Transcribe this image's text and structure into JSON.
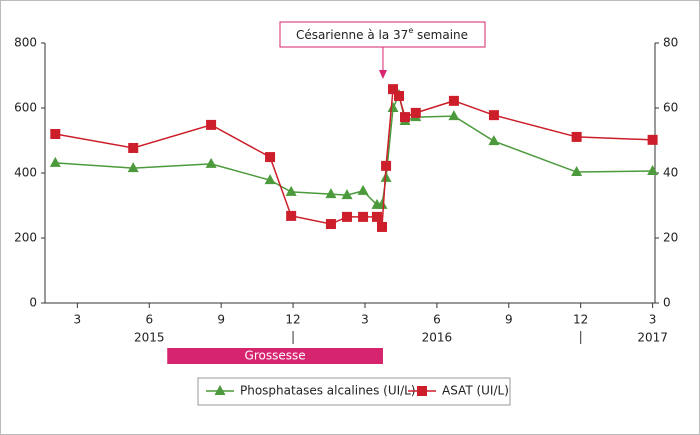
{
  "chart_data": {
    "type": "line",
    "x": [
      2.08,
      5.33,
      8.58,
      11.04,
      11.92,
      13.58,
      14.25,
      14.92,
      15.5,
      15.71,
      15.88,
      16.17,
      16.42,
      16.67,
      17.12,
      18.71,
      20.38,
      23.83,
      27.0
    ],
    "series": [
      {
        "name": "Phosphatases alcalines (UI/L)",
        "color": "#4c9a3c",
        "marker": "triangle",
        "values": [
          431,
          415,
          428,
          378,
          342,
          335,
          332,
          345,
          302,
          302,
          385,
          600,
          640,
          560,
          572,
          575,
          498,
          403,
          406
        ]
      },
      {
        "name": "ASAT (UI/L)",
        "color": "#cc1f2b",
        "marker": "square",
        "axis": "y2",
        "values": [
          52,
          47.7,
          54.8,
          44.9,
          26.8,
          24.3,
          26.5,
          26.5,
          26.5,
          23.4,
          42.2,
          65.8,
          63.7,
          57.2,
          58.5,
          62.2,
          57.8,
          51.1,
          50.2
        ]
      }
    ],
    "xlim": [
      1.65,
      27.1
    ],
    "xticks": [
      3,
      6,
      9,
      12,
      {
        "value": 15,
        "label": "3"
      },
      {
        "value": 18,
        "label": "6"
      },
      {
        "value": 21,
        "label": "9"
      },
      {
        "value": 24,
        "label": "12"
      },
      {
        "value": 27,
        "label": "3"
      }
    ],
    "ylim": [
      0,
      800
    ],
    "yticks": [
      0,
      200,
      400,
      600,
      800
    ],
    "y2lim": [
      0,
      80
    ],
    "y2ticks": [
      0,
      20,
      40,
      60,
      80
    ],
    "years": [
      {
        "label": "2015",
        "x": 6
      },
      {
        "label": "2016",
        "x": 18
      },
      {
        "label": "2017",
        "x": 27
      }
    ],
    "year_separators": [
      12,
      24
    ],
    "annotation": {
      "text": [
        "Césarienne à la 37",
        "e",
        " semaine"
      ],
      "x": 15.75
    },
    "span": {
      "label": "Grossesse",
      "x": [
        6.75,
        15.75
      ],
      "color": "#d6246e"
    }
  }
}
